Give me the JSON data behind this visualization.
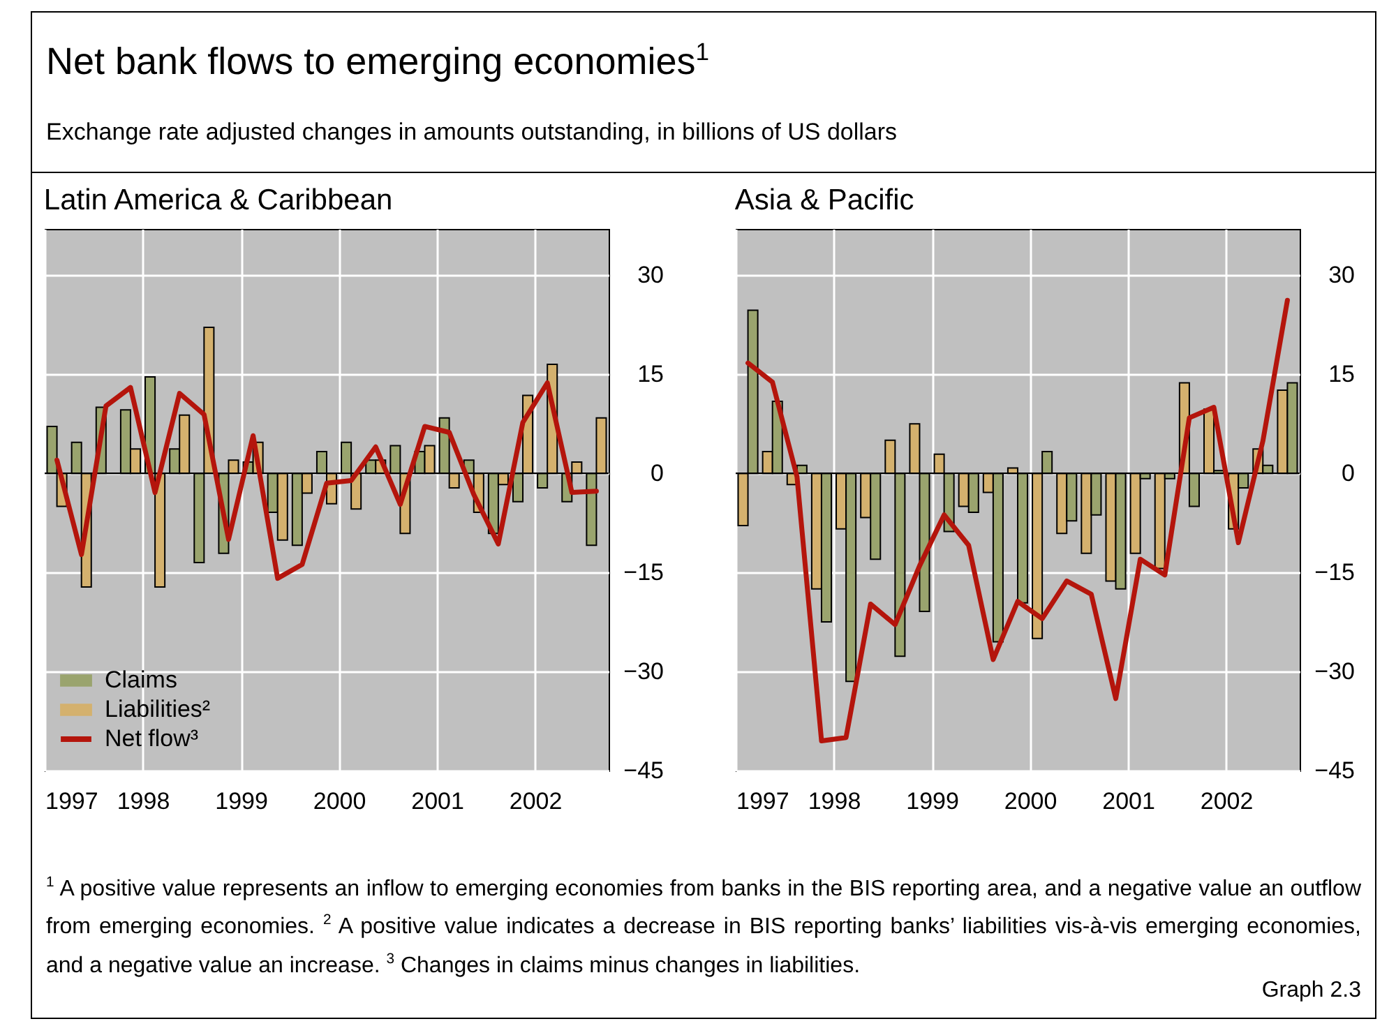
{
  "chart_data": [
    {
      "type": "other",
      "title": "Net bank flows to emerging economies$^{1}$",
      "subtitle": "Exchange rate adjusted changes in amounts outstanding, in billions of US dollars",
      "annotations": [
        "$^{1}$ A positive value represents an inflow to emerging economies from banks in the BIS reporting area, and a negative value an outflow from emerging economies.  $^{2}$ A positive value indicates a decrease in BIS reporting banks’ liabilities vis-à-vis emerging economies, and a negative value an increase.  $^{3}$ Changes in claims minus changes in liabilities.",
        "Graph 2.3"
      ]
    },
    {
      "type": "bar",
      "title": "Latin America & Caribbean",
      "x": [
        1997.125,
        1997.375,
        1997.625,
        1997.875,
        1998.125,
        1998.375,
        1998.625,
        1998.875,
        1999.125,
        1999.375,
        1999.625,
        1999.875,
        2000.125,
        2000.375,
        2000.625,
        2000.875,
        2001.125,
        2001.375,
        2001.625,
        2001.875,
        2002.125,
        2002.375,
        2002.625
      ],
      "series": [
        {
          "name": "Claims",
          "type": "bar",
          "color": "#9aa46e",
          "values": [
            7.1,
            4.7,
            10.0,
            9.6,
            14.6,
            3.7,
            -13.5,
            -12.1,
            1.7,
            -5.9,
            -10.9,
            3.3,
            4.7,
            2.0,
            4.2,
            3.3,
            8.4,
            2.0,
            -9.1,
            -4.3,
            -2.2,
            -4.3,
            -10.9
          ]
        },
        {
          "name": "Liabilities²",
          "type": "bar",
          "color": "#d4b16e",
          "values": [
            -5.0,
            -17.2,
            null,
            3.7,
            -17.2,
            8.8,
            22.1,
            2.0,
            4.7,
            -10.1,
            -3.0,
            -4.6,
            -5.4,
            2.0,
            -9.1,
            4.2,
            -2.2,
            -5.9,
            -1.7,
            11.8,
            16.5,
            1.7,
            8.4
          ]
        },
        {
          "name": "Net flow³",
          "type": "line",
          "color": "#b4150c",
          "values": [
            2.0,
            -12.3,
            10.2,
            13.0,
            -2.9,
            12.1,
            8.9,
            -10.0,
            5.7,
            -15.9,
            -13.8,
            -1.5,
            -1.1,
            4.0,
            -4.7,
            7.1,
            6.2,
            -3.2,
            -10.7,
            7.7,
            13.7,
            -2.9,
            -2.7
          ]
        }
      ],
      "xlim": [
        1997,
        2002.75
      ],
      "xticks": [
        1997,
        1998,
        1999,
        2000,
        2001,
        2002
      ],
      "ylim": [
        -45,
        37
      ],
      "yticks": [
        -45,
        -30,
        -15,
        0,
        15,
        30
      ],
      "grid": true,
      "legend": "bottom left",
      "ref_lines": [
        {
          "axis": "y",
          "value": 0,
          "color": "#000000"
        }
      ]
    },
    {
      "type": "bar",
      "title": "Asia & Pacific",
      "x": [
        1997.125,
        1997.375,
        1997.625,
        1997.875,
        1998.125,
        1998.375,
        1998.625,
        1998.875,
        1999.125,
        1999.375,
        1999.625,
        1999.875,
        2000.125,
        2000.375,
        2000.625,
        2000.875,
        2001.125,
        2001.375,
        2001.625,
        2001.875,
        2002.125,
        2002.375,
        2002.625
      ],
      "series": [
        {
          "type": "bar",
          "color": "#d4b16e",
          "values": [
            -7.9,
            3.3,
            -1.7,
            -17.5,
            -8.4,
            -6.7,
            5.0,
            7.5,
            2.9,
            -5.0,
            -2.9,
            0.8,
            -25.0,
            -9.1,
            -12.1,
            -16.3,
            -12.1,
            -14.4,
            13.7,
            9.7,
            -8.4,
            3.7,
            12.6
          ]
        },
        {
          "type": "bar",
          "color": "#9aa46e",
          "values": [
            24.7,
            10.9,
            1.2,
            -22.5,
            -31.5,
            -13.0,
            -27.7,
            -20.9,
            -8.8,
            -5.9,
            -25.5,
            -19.6,
            3.3,
            -7.2,
            -6.3,
            -17.5,
            -0.8,
            -0.8,
            -5.0,
            0.4,
            -2.2,
            1.2,
            13.7
          ]
        },
        {
          "type": "line",
          "color": "#b4150c",
          "values": [
            16.7,
            13.8,
            -0.5,
            -40.5,
            -40.0,
            -19.8,
            -22.9,
            -14.0,
            -6.3,
            -10.9,
            -28.2,
            -19.4,
            -22.0,
            -16.3,
            -18.3,
            -34.1,
            -13.0,
            -15.4,
            8.4,
            10.0,
            -10.5,
            4.9,
            26.2
          ]
        }
      ],
      "xlim": [
        1997,
        2002.75
      ],
      "xticks": [
        1997,
        1998,
        1999,
        2000,
        2001,
        2002
      ],
      "ylim": [
        -45,
        37
      ],
      "yticks": [
        -45,
        -30,
        -15,
        0,
        15,
        30
      ],
      "grid": true,
      "ref_lines": [
        {
          "axis": "y",
          "value": 0,
          "color": "#000000"
        }
      ]
    }
  ]
}
